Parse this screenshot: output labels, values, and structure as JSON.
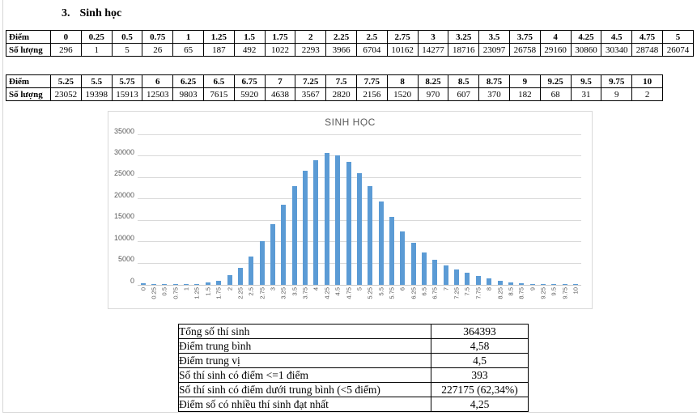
{
  "page": {
    "heading_number": "3.",
    "heading_text": "Sinh học"
  },
  "score_tables": {
    "row_label_score": "Điểm",
    "row_label_count": "Số lượng",
    "table1": {
      "scores": [
        "0",
        "0.25",
        "0.5",
        "0.75",
        "1",
        "1.25",
        "1.5",
        "1.75",
        "2",
        "2.25",
        "2.5",
        "2.75",
        "3",
        "3.25",
        "3.5",
        "3.75",
        "4",
        "4.25",
        "4.5",
        "4.75",
        "5"
      ],
      "counts": [
        "296",
        "1",
        "5",
        "26",
        "65",
        "187",
        "492",
        "1022",
        "2293",
        "3966",
        "6704",
        "10162",
        "14277",
        "18716",
        "23097",
        "26758",
        "29160",
        "30860",
        "30340",
        "28748",
        "26074"
      ]
    },
    "table2": {
      "scores": [
        "5.25",
        "5.5",
        "5.75",
        "6",
        "6.25",
        "6.5",
        "6.75",
        "7",
        "7.25",
        "7.5",
        "7.75",
        "8",
        "8.25",
        "8.5",
        "8.75",
        "9",
        "9.25",
        "9.5",
        "9.75",
        "10"
      ],
      "counts": [
        "23052",
        "19398",
        "15913",
        "12503",
        "9803",
        "7615",
        "5920",
        "4638",
        "3567",
        "2820",
        "2156",
        "1520",
        "970",
        "607",
        "370",
        "182",
        "68",
        "31",
        "9",
        "2"
      ]
    }
  },
  "chart_data": {
    "type": "bar",
    "title": "SINH HỌC",
    "xlabel": "",
    "ylabel": "",
    "categories": [
      "0",
      "0.25",
      "0.5",
      "0.75",
      "1",
      "1.25",
      "1.5",
      "1.75",
      "2",
      "2.25",
      "2.5",
      "2.75",
      "3",
      "3.25",
      "3.5",
      "3.75",
      "4",
      "4.25",
      "4.5",
      "4.75",
      "5",
      "5.25",
      "5.5",
      "5.75",
      "6",
      "6.25",
      "6.5",
      "6.75",
      "7",
      "7.25",
      "7.5",
      "7.75",
      "8",
      "8.25",
      "8.5",
      "8.75",
      "9",
      "9.25",
      "9.5",
      "9.75",
      "10"
    ],
    "values": [
      296,
      1,
      5,
      26,
      65,
      187,
      492,
      1022,
      2293,
      3966,
      6704,
      10162,
      14277,
      18716,
      23097,
      26758,
      29160,
      30860,
      30340,
      28748,
      26074,
      23052,
      19398,
      15913,
      12503,
      9803,
      7615,
      5920,
      4638,
      3567,
      2820,
      2156,
      1520,
      970,
      607,
      370,
      182,
      68,
      31,
      9,
      2
    ],
    "ylim": [
      0,
      35000
    ],
    "yticks": [
      0,
      5000,
      10000,
      15000,
      20000,
      25000,
      30000,
      35000
    ],
    "grid": true,
    "legend_position": "none",
    "bar_color": "#5B9BD5"
  },
  "summary_table": {
    "rows": [
      {
        "label": "Tổng số thí sinh",
        "value": "364393"
      },
      {
        "label": "Điểm trung bình",
        "value": "4,58"
      },
      {
        "label": "Điểm trung vị",
        "value": "4,5"
      },
      {
        "label": "Số thí sinh có điểm <=1 điểm",
        "value": "393"
      },
      {
        "label": "Số thí sinh có điểm dưới trung bình (<5 điểm)",
        "value": "227175 (62,34%)"
      },
      {
        "label": "Điểm số có nhiều thí sinh đạt nhất",
        "value": "4,25"
      }
    ]
  },
  "colors": {
    "bar": "#5B9BD5",
    "gridline": "#D9D9D9",
    "chart_border": "#D9D9D9",
    "chart_text": "#595959",
    "page_edge": "#D6D6D6"
  }
}
